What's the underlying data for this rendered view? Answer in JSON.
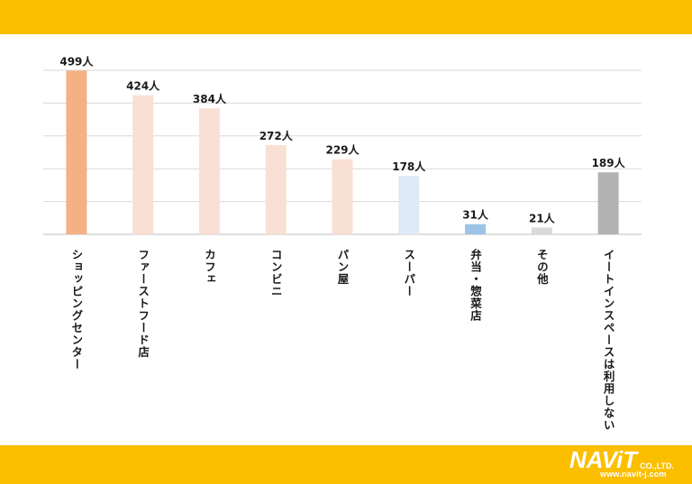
{
  "chart_data": {
    "type": "bar",
    "categories": [
      "ショッピングセンター",
      "ファーストフード店",
      "カフェ",
      "コンビニ",
      "パン屋",
      "スーパー",
      "弁当・惣菜店",
      "その他",
      "イートインスペースは利用しない"
    ],
    "values": [
      499,
      424,
      384,
      272,
      229,
      178,
      31,
      21,
      189
    ],
    "value_labels": [
      "499人",
      "424人",
      "384人",
      "272人",
      "229人",
      "178人",
      "31人",
      "21人",
      "189人"
    ],
    "colors": [
      "#f4b183",
      "#f9e0d4",
      "#f9e0d4",
      "#f9e0d4",
      "#f9e0d4",
      "#deebf7",
      "#9dc3e6",
      "#d9d9d9",
      "#b2b2b2"
    ],
    "ylim": [
      0,
      500
    ],
    "grid": true,
    "title": "",
    "xlabel": "",
    "ylabel": ""
  },
  "logo": {
    "brand": "NAViT",
    "suffix": "CO.,LTD.",
    "url": "www.navit-j.com"
  }
}
